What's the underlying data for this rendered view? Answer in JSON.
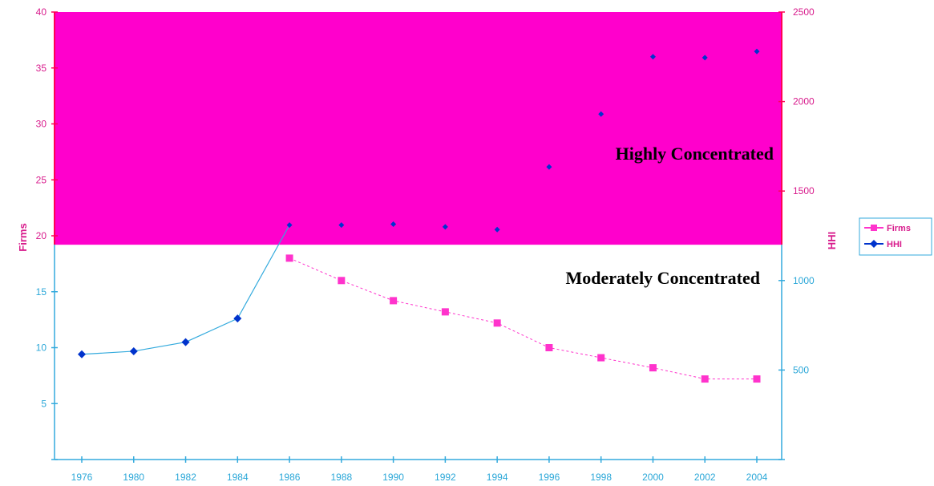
{
  "chart_data": {
    "type": "line",
    "x": [
      "1976",
      "1980",
      "1982",
      "1984",
      "1986",
      "1988",
      "1990",
      "1992",
      "1994",
      "1996",
      "1998",
      "2000",
      "2002",
      "2004"
    ],
    "series": [
      {
        "name": "Firms",
        "axis": "left",
        "marker": "square",
        "values": [
          null,
          null,
          null,
          null,
          18,
          16,
          14.2,
          13.2,
          12.2,
          10.0,
          9.1,
          8.2,
          7.2,
          7.2
        ]
      },
      {
        "name": "HHI",
        "axis": "right",
        "marker": "diamond",
        "values": [
          588,
          605,
          656,
          788,
          1310,
          1310,
          1315,
          1300,
          1285,
          1635,
          1930,
          2250,
          2245,
          2280
        ]
      }
    ],
    "ylabel_left": "Firms",
    "ylabel_right": "HHI",
    "ylim_left": [
      0,
      40
    ],
    "ylim_right": [
      0,
      2500
    ],
    "yticks_left": [
      0,
      5,
      10,
      15,
      20,
      25,
      30,
      35,
      40
    ],
    "yticks_right": [
      0,
      500,
      1000,
      1500,
      2000,
      2500
    ],
    "zones": {
      "highly_label": "Highly Concentrated",
      "moderately_label": "Moderately Concentrated",
      "highly_threshold_hhi": 1200,
      "highly_color": "#ff00cc"
    },
    "legend": {
      "placement": "right",
      "entries": [
        "Firms",
        "HHI"
      ]
    },
    "colors": {
      "firms": "#ff33cc",
      "hhi": "#0033cc",
      "axis": "#33aadd",
      "axis_top": "#ff0055"
    }
  }
}
